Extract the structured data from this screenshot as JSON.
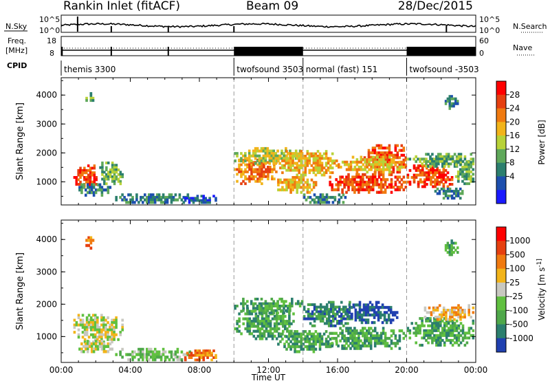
{
  "header": {
    "station": "Rankin Inlet (fitACF)",
    "beam": "Beam 09",
    "date": "28/Dec/2015"
  },
  "strips": {
    "nsky_label": "N.Sky",
    "nsky_tick_top": "10^5",
    "nsky_tick_bottom": "10^0",
    "nsearch_label": "N.Search",
    "freq_label_top": "Freq.",
    "freq_label_unit": "[MHz]",
    "freq_ticks": [
      "18",
      "8"
    ],
    "nave_label": "Nave",
    "nave_ticks": [
      "60",
      "0"
    ],
    "cpid_label": "CPID",
    "cpid_segments": [
      {
        "label": "themis 3300",
        "start_hour": 0,
        "end_hour": 10
      },
      {
        "label": "twofsound 3503",
        "start_hour": 10,
        "end_hour": 14
      },
      {
        "label": "normal (fast) 151",
        "start_hour": 14,
        "end_hour": 20
      },
      {
        "label": "twofsound -3503",
        "start_hour": 20,
        "end_hour": 24
      }
    ]
  },
  "chart_data": [
    {
      "type": "heatmap",
      "quantity": "Power",
      "ylabel": "Slant Range [km]",
      "yticks": [
        "1000",
        "2000",
        "3000",
        "4000"
      ],
      "ylim": [
        200,
        4600
      ],
      "xlim_hours": [
        0,
        24
      ],
      "colorbar_label": "Power [dB]",
      "colorbar_ticks": [
        "28",
        "24",
        "20",
        "16",
        "12",
        "8",
        "4"
      ],
      "colorbar_range": [
        0,
        32
      ],
      "colors": [
        "#1a1aff",
        "#1d4fae",
        "#2c7f6e",
        "#5fa85a",
        "#b8d238",
        "#f2b41a",
        "#f07a10",
        "#e64010",
        "#ff0000"
      ],
      "blobs": [
        {
          "x": [
            0.7,
            2.2
          ],
          "y": [
            800,
            1600
          ],
          "value": 28
        },
        {
          "x": [
            2.2,
            3.6
          ],
          "y": [
            900,
            1700
          ],
          "value": 12
        },
        {
          "x": [
            1.0,
            3.0
          ],
          "y": [
            500,
            950
          ],
          "value": 10
        },
        {
          "x": [
            3.0,
            7.5
          ],
          "y": [
            250,
            600
          ],
          "value": 8
        },
        {
          "x": [
            7.0,
            9.0
          ],
          "y": [
            250,
            550
          ],
          "value": 6
        },
        {
          "x": [
            1.4,
            1.9
          ],
          "y": [
            3700,
            4100
          ],
          "value": 12
        },
        {
          "x": [
            10.0,
            12.5
          ],
          "y": [
            900,
            1800
          ],
          "value": 24
        },
        {
          "x": [
            10.0,
            14.0
          ],
          "y": [
            1600,
            2200
          ],
          "value": 16
        },
        {
          "x": [
            12.5,
            16.0
          ],
          "y": [
            1200,
            2100
          ],
          "value": 18
        },
        {
          "x": [
            12.5,
            14.8
          ],
          "y": [
            600,
            1200
          ],
          "value": 18
        },
        {
          "x": [
            14.0,
            16.5
          ],
          "y": [
            250,
            600
          ],
          "value": 8
        },
        {
          "x": [
            15.5,
            20.0
          ],
          "y": [
            600,
            1300
          ],
          "value": 26
        },
        {
          "x": [
            17.5,
            20.0
          ],
          "y": [
            1300,
            2300
          ],
          "value": 28
        },
        {
          "x": [
            16.0,
            20.0
          ],
          "y": [
            1300,
            1900
          ],
          "value": 18
        },
        {
          "x": [
            20.0,
            22.8
          ],
          "y": [
            800,
            1600
          ],
          "value": 27
        },
        {
          "x": [
            20.0,
            23.9
          ],
          "y": [
            1500,
            2000
          ],
          "value": 14
        },
        {
          "x": [
            21.6,
            23.4
          ],
          "y": [
            400,
            800
          ],
          "value": 10
        },
        {
          "x": [
            22.2,
            23.0
          ],
          "y": [
            3500,
            4000
          ],
          "value": 10
        },
        {
          "x": [
            22.8,
            23.9
          ],
          "y": [
            900,
            1800
          ],
          "value": 14
        }
      ]
    },
    {
      "type": "heatmap",
      "quantity": "Velocity",
      "ylabel": "Slant Range [km]",
      "yticks": [
        "1000",
        "2000",
        "3000",
        "4000"
      ],
      "ylim": [
        200,
        4600
      ],
      "xlim_hours": [
        0,
        24
      ],
      "xticks": [
        "00:00",
        "04:00",
        "08:00",
        "12:00",
        "16:00",
        "20:00",
        "00:00"
      ],
      "xlabel": "Time UT",
      "colorbar_label": "Velocity [m s^-1]",
      "colorbar_ticks": [
        "1000",
        "500",
        "100",
        "25",
        "-25",
        "-100",
        "-500",
        "-1000"
      ],
      "colors": [
        "#2040b0",
        "#2c7f6e",
        "#4fa84a",
        "#60c040",
        "#c8c8c0",
        "#f2b41a",
        "#f07a10",
        "#e64010",
        "#ff0000"
      ],
      "blobs": [
        {
          "x": [
            0.7,
            3.6
          ],
          "y": [
            800,
            1700
          ],
          "value": 4
        },
        {
          "x": [
            1.0,
            3.0
          ],
          "y": [
            500,
            900
          ],
          "value": 4
        },
        {
          "x": [
            3.0,
            7.5
          ],
          "y": [
            250,
            650
          ],
          "value": 3
        },
        {
          "x": [
            7.0,
            9.0
          ],
          "y": [
            250,
            600
          ],
          "value": 6
        },
        {
          "x": [
            1.4,
            1.9
          ],
          "y": [
            3700,
            4100
          ],
          "value": 6
        },
        {
          "x": [
            10.0,
            13.5
          ],
          "y": [
            900,
            1900
          ],
          "value": 2
        },
        {
          "x": [
            10.0,
            14.0
          ],
          "y": [
            1700,
            2200
          ],
          "value": 2
        },
        {
          "x": [
            12.5,
            16.0
          ],
          "y": [
            500,
            1200
          ],
          "value": 2
        },
        {
          "x": [
            14.0,
            17.0
          ],
          "y": [
            1300,
            2100
          ],
          "value": 1
        },
        {
          "x": [
            16.5,
            19.5
          ],
          "y": [
            1400,
            2100
          ],
          "value": 0
        },
        {
          "x": [
            15.5,
            20.0
          ],
          "y": [
            600,
            1300
          ],
          "value": 2
        },
        {
          "x": [
            20.0,
            23.9
          ],
          "y": [
            700,
            1600
          ],
          "value": 2
        },
        {
          "x": [
            21.0,
            23.9
          ],
          "y": [
            1500,
            2000
          ],
          "value": 5
        },
        {
          "x": [
            22.2,
            23.0
          ],
          "y": [
            3500,
            4000
          ],
          "value": 2
        }
      ]
    }
  ]
}
